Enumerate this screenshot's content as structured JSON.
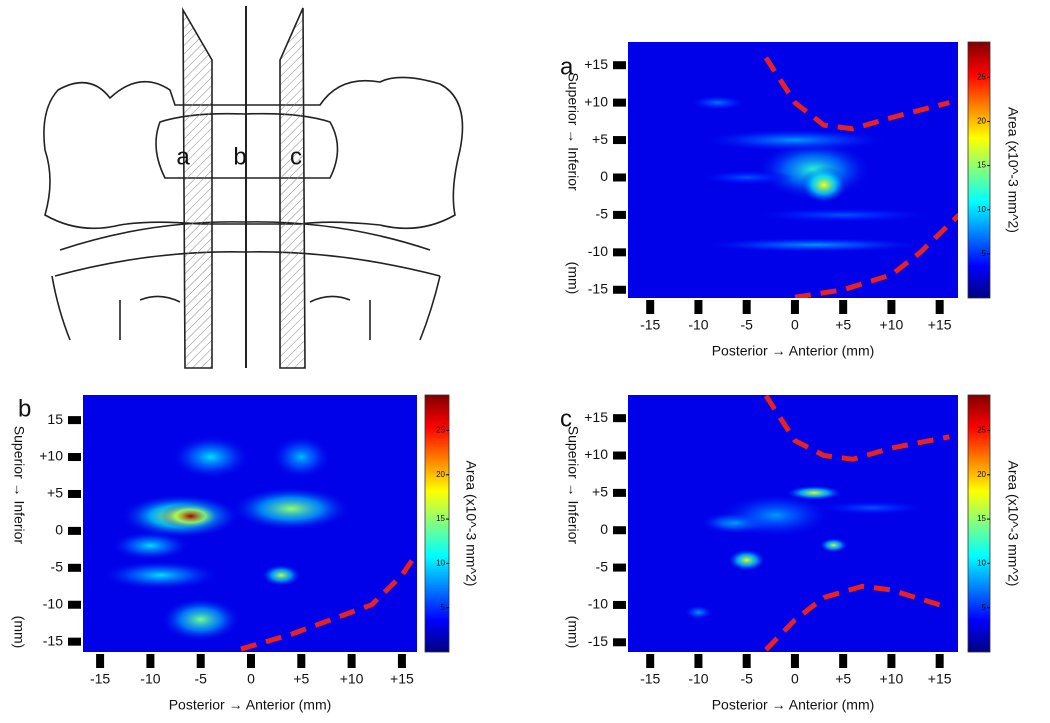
{
  "diagram": {
    "labels": [
      "a",
      "b",
      "c"
    ]
  },
  "chart_data": [
    {
      "type": "heatmap",
      "panel": "a",
      "xlabel": "Posterior → Anterior  (mm)",
      "ylabel": "Superior → Inferior",
      "yunit": "(mm)",
      "colorbar_label": "Area (x10^-3  mm^2)",
      "xlim": [
        -17.3,
        16.9
      ],
      "ylim": [
        -16.1,
        18.1
      ],
      "xticks": [
        -15,
        -10,
        -5,
        0,
        {
          "value": 5,
          "label": "+5"
        },
        {
          "value": 10,
          "label": "+10"
        },
        {
          "value": 15,
          "label": "+15"
        }
      ],
      "yticks": [
        {
          "value": 15,
          "label": "+15"
        },
        {
          "value": 10,
          "label": "+10"
        },
        {
          "value": 5,
          "label": "+5"
        },
        0,
        -5,
        -10,
        -15
      ],
      "clim": [
        0,
        29
      ],
      "cticks": [
        5,
        10,
        15,
        20,
        25
      ],
      "background": 3,
      "spots": [
        {
          "x": 2,
          "y": 1,
          "sx": 6,
          "sy": 4,
          "value": 12
        },
        {
          "x": 0,
          "y": 5,
          "sx": 10,
          "sy": 1.5,
          "value": 8
        },
        {
          "x": -8,
          "y": 10,
          "sx": 3,
          "sy": 1,
          "value": 7
        },
        {
          "x": 2,
          "y": -9,
          "sx": 12,
          "sy": 1,
          "value": 8
        },
        {
          "x": 5,
          "y": -5,
          "sx": 10,
          "sy": 1,
          "value": 6
        },
        {
          "x": -5,
          "y": 0,
          "sx": 5,
          "sy": 1,
          "value": 6
        },
        {
          "x": 3,
          "y": -1,
          "sx": 2.5,
          "sy": 2.5,
          "value": 18
        }
      ],
      "boundaries": [
        {
          "x": [
            -3,
            0,
            3,
            6,
            10,
            16
          ],
          "y": [
            16,
            10,
            7,
            6.5,
            8,
            10
          ]
        },
        {
          "x": [
            0,
            5,
            10,
            13,
            17
          ],
          "y": [
            -16,
            -15,
            -13,
            -10,
            -5
          ]
        }
      ]
    },
    {
      "type": "heatmap",
      "panel": "b",
      "xlabel": "Posterior → Anterior    (mm)",
      "ylabel": "Superior → Inferior",
      "yunit": "(mm)",
      "colorbar_label": "Area (x10^-3  mm^2)",
      "xlim": [
        -16.7,
        16.5
      ],
      "ylim": [
        -16.4,
        18.4
      ],
      "xticks": [
        -15,
        -10,
        -5,
        0,
        {
          "value": 5,
          "label": "+5"
        },
        {
          "value": 10,
          "label": "+10"
        },
        {
          "value": 15,
          "label": "+15"
        }
      ],
      "yticks": [
        15,
        {
          "value": 10,
          "label": "+10"
        },
        {
          "value": 5,
          "label": "+5"
        },
        0,
        -5,
        -10,
        -15
      ],
      "clim": [
        0,
        29
      ],
      "cticks": [
        5,
        10,
        15,
        20,
        25
      ],
      "background": 3,
      "spots": [
        {
          "x": -7,
          "y": 2,
          "sx": 6,
          "sy": 3,
          "value": 18
        },
        {
          "x": 4,
          "y": 3,
          "sx": 6,
          "sy": 3,
          "value": 15
        },
        {
          "x": -5,
          "y": -12,
          "sx": 4,
          "sy": 3,
          "value": 14
        },
        {
          "x": -9,
          "y": -6,
          "sx": 6,
          "sy": 2,
          "value": 10
        },
        {
          "x": -4,
          "y": 10,
          "sx": 4,
          "sy": 3,
          "value": 10
        },
        {
          "x": 5,
          "y": 10,
          "sx": 3,
          "sy": 3,
          "value": 9
        },
        {
          "x": -10,
          "y": -2,
          "sx": 4,
          "sy": 2,
          "value": 10
        },
        {
          "x": 3,
          "y": -6,
          "sx": 2,
          "sy": 1.5,
          "value": 16
        },
        {
          "x": -6,
          "y": 2,
          "sx": 3,
          "sy": 1.8,
          "value": 28
        }
      ],
      "boundaries": [
        {
          "x": [
            -1,
            4,
            8,
            12,
            15,
            16
          ],
          "y": [
            -16,
            -14,
            -12,
            -10,
            -6,
            -4
          ]
        }
      ]
    },
    {
      "type": "heatmap",
      "panel": "c",
      "xlabel": "Posterior → Anterior  (mm)",
      "ylabel": "Superior → Inferior",
      "yunit": "(mm)",
      "colorbar_label": "Area (x10^-3  mm^2)",
      "xlim": [
        -17.3,
        16.9
      ],
      "ylim": [
        -16.3,
        18.1
      ],
      "xticks": [
        -15,
        -10,
        -5,
        0,
        {
          "value": 5,
          "label": "+5"
        },
        {
          "value": 10,
          "label": "+10"
        },
        {
          "value": 15,
          "label": "+15"
        }
      ],
      "yticks": [
        {
          "value": 15,
          "label": "+15"
        },
        {
          "value": 10,
          "label": "+10"
        },
        {
          "value": 5,
          "label": "+5"
        },
        0,
        -5,
        -10,
        -15
      ],
      "clim": [
        0,
        29
      ],
      "cticks": [
        5,
        10,
        15,
        20,
        25
      ],
      "background": 3,
      "spots": [
        {
          "x": -6,
          "y": 1,
          "sx": 4,
          "sy": 1.5,
          "value": 10
        },
        {
          "x": -2,
          "y": 2,
          "sx": 6,
          "sy": 3,
          "value": 8
        },
        {
          "x": -10,
          "y": -11,
          "sx": 1.5,
          "sy": 1,
          "value": 8
        },
        {
          "x": 8,
          "y": 3,
          "sx": 6,
          "sy": 1,
          "value": 6
        },
        {
          "x": 2,
          "y": 5,
          "sx": 3,
          "sy": 1,
          "value": 17
        },
        {
          "x": -5,
          "y": -4,
          "sx": 2,
          "sy": 1.5,
          "value": 17
        },
        {
          "x": 4,
          "y": -2,
          "sx": 1.5,
          "sy": 1,
          "value": 16
        }
      ],
      "boundaries": [
        {
          "x": [
            -3,
            0,
            3,
            6,
            10,
            16
          ],
          "y": [
            18,
            12,
            10,
            9.5,
            11,
            12.5
          ]
        },
        {
          "x": [
            -3,
            0,
            3,
            7,
            10,
            15
          ],
          "y": [
            -16,
            -12,
            -9,
            -7.5,
            -8,
            -10
          ]
        }
      ]
    }
  ]
}
